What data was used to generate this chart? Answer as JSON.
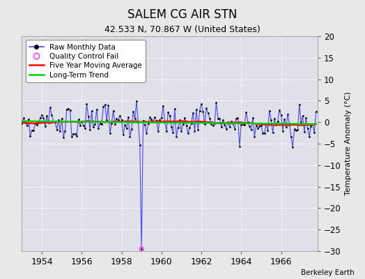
{
  "title": "SALEM CG AIR STN",
  "subtitle": "42.533 N, 70.867 W (United States)",
  "ylabel": "Temperature Anomaly (°C)",
  "credit": "Berkeley Earth",
  "ylim": [
    -30,
    20
  ],
  "yticks": [
    -30,
    -25,
    -20,
    -15,
    -10,
    -5,
    0,
    5,
    10,
    15,
    20
  ],
  "xlim": [
    1953.0,
    1967.83
  ],
  "xticks": [
    1954,
    1956,
    1958,
    1960,
    1962,
    1964,
    1966
  ],
  "fig_bg_color": "#e8e8e8",
  "plot_bg_color": "#e0e0e8",
  "grid_color": "#ffffff",
  "raw_line_color": "#4444ff",
  "dot_color": "#000000",
  "ma_color": "#ff0000",
  "trend_color": "#00cc00",
  "qc_color": "#ff44ff",
  "outlier_idx": 72,
  "outlier_val": -29.5,
  "seed": 15
}
